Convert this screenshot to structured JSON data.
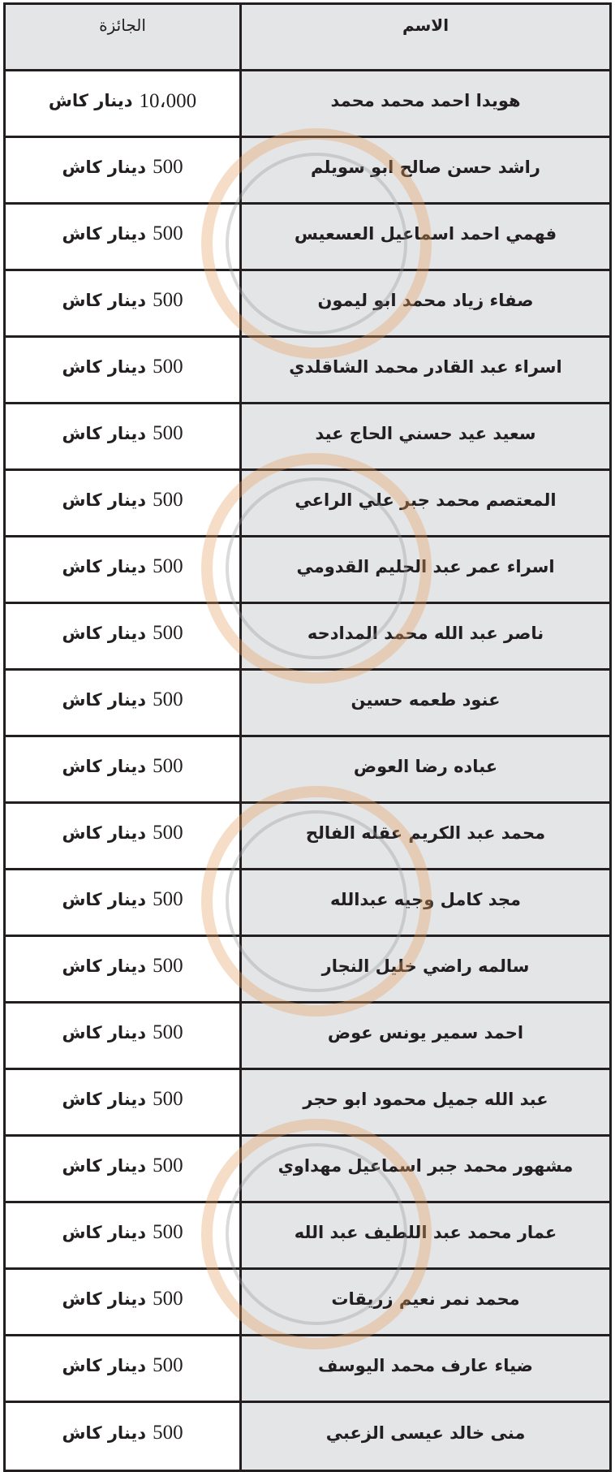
{
  "header": {
    "name": "الاسم",
    "prize": "الجائزة"
  },
  "rows": [
    {
      "name": "هويدا احمد محمد محمد",
      "amount": "10،000",
      "unit": "دينار كاش"
    },
    {
      "name": "راشد حسن صالح ابو سويلم",
      "amount": "500",
      "unit": "دينار كاش"
    },
    {
      "name": "فهمي احمد اسماعيل العسعيس",
      "amount": "500",
      "unit": "دينار كاش"
    },
    {
      "name": "صفاء زياد محمد ابو ليمون",
      "amount": "500",
      "unit": "دينار كاش"
    },
    {
      "name": "اسراء عبد القادر محمد الشاقلدي",
      "amount": "500",
      "unit": "دينار كاش"
    },
    {
      "name": "سعيد عيد حسني الحاج عيد",
      "amount": "500",
      "unit": "دينار كاش"
    },
    {
      "name": "المعتصم محمد جبر علي الراعي",
      "amount": "500",
      "unit": "دينار كاش"
    },
    {
      "name": "اسراء عمر عبد الحليم القدومي",
      "amount": "500",
      "unit": "دينار كاش"
    },
    {
      "name": "ناصر عبد الله محمد المدادحه",
      "amount": "500",
      "unit": "دينار كاش"
    },
    {
      "name": "عنود طعمه حسين",
      "amount": "500",
      "unit": "دينار كاش"
    },
    {
      "name": "عباده رضا العوض",
      "amount": "500",
      "unit": "دينار كاش"
    },
    {
      "name": "محمد عبد الكريم عقله الفالح",
      "amount": "500",
      "unit": "دينار كاش"
    },
    {
      "name": "مجد كامل وجيه عبدالله",
      "amount": "500",
      "unit": "دينار كاش"
    },
    {
      "name": "سالمه راضي خليل النجار",
      "amount": "500",
      "unit": "دينار كاش"
    },
    {
      "name": "احمد سمير يونس عوض",
      "amount": "500",
      "unit": "دينار كاش"
    },
    {
      "name": "عبد الله جميل محمود ابو حجر",
      "amount": "500",
      "unit": "دينار كاش"
    },
    {
      "name": "مشهور محمد جبر اسماعيل مهداوي",
      "amount": "500",
      "unit": "دينار كاش"
    },
    {
      "name": "عمار محمد عبد اللطيف عبد الله",
      "amount": "500",
      "unit": "دينار كاش"
    },
    {
      "name": "محمد نمر نعيم زريقات",
      "amount": "500",
      "unit": "دينار كاش"
    },
    {
      "name": "ضياء عارف محمد اليوسف",
      "amount": "500",
      "unit": "دينار كاش"
    },
    {
      "name": "منى خالد عيسى الزعبي",
      "amount": "500",
      "unit": "دينار كاش"
    }
  ],
  "colors": {
    "border": "#231f20",
    "name_cell_bg": "#e4e5e7",
    "prize_cell_bg": "#ffffff",
    "watermark_ring": "#e8a060"
  }
}
